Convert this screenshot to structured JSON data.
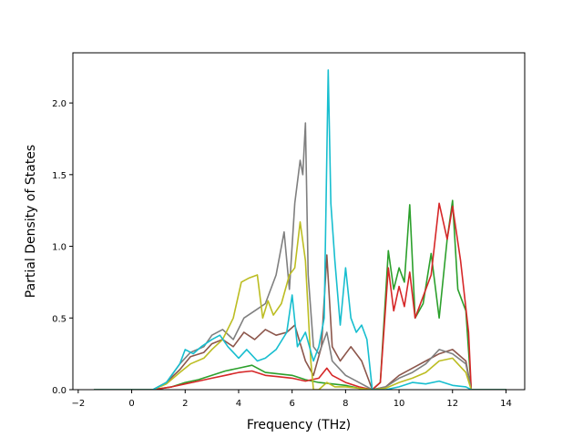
{
  "chart_data": {
    "type": "line",
    "title": "",
    "xlabel": "Frequency (THz)",
    "ylabel": "Partial Density of States",
    "xlim": [
      -2.2,
      14.7
    ],
    "ylim": [
      0,
      2.35
    ],
    "xticks": [
      -2,
      0,
      2,
      4,
      6,
      8,
      10,
      12,
      14
    ],
    "xtick_labels": [
      "−2",
      "0",
      "2",
      "4",
      "6",
      "8",
      "10",
      "12",
      "14"
    ],
    "yticks": [
      0,
      0.5,
      1,
      1.5,
      2
    ],
    "ytick_labels": [
      "0.0",
      "0.5",
      "1.0",
      "1.5",
      "2.0"
    ],
    "grid": false,
    "legend": "none",
    "series": [
      {
        "color": "#2ca02c",
        "points": [
          [
            -1.4,
            0
          ],
          [
            0.8,
            0
          ],
          [
            1.5,
            0.02
          ],
          [
            2,
            0.05
          ],
          [
            2.5,
            0.07
          ],
          [
            3,
            0.1
          ],
          [
            3.5,
            0.13
          ],
          [
            4,
            0.15
          ],
          [
            4.5,
            0.17
          ],
          [
            5,
            0.12
          ],
          [
            5.5,
            0.11
          ],
          [
            6,
            0.1
          ],
          [
            6.5,
            0.07
          ],
          [
            7,
            0.05
          ],
          [
            7.5,
            0.04
          ],
          [
            8,
            0.03
          ],
          [
            8.5,
            0.01
          ],
          [
            9,
            0
          ],
          [
            9.3,
            0.05
          ],
          [
            9.6,
            0.97
          ],
          [
            9.8,
            0.7
          ],
          [
            10,
            0.85
          ],
          [
            10.2,
            0.75
          ],
          [
            10.4,
            1.29
          ],
          [
            10.6,
            0.5
          ],
          [
            10.9,
            0.6
          ],
          [
            11.2,
            0.95
          ],
          [
            11.5,
            0.5
          ],
          [
            11.8,
            1.05
          ],
          [
            12,
            1.32
          ],
          [
            12.2,
            0.7
          ],
          [
            12.5,
            0.55
          ],
          [
            12.7,
            0
          ],
          [
            14,
            0
          ]
        ]
      },
      {
        "color": "#d62728",
        "points": [
          [
            -1.4,
            0
          ],
          [
            0.8,
            0
          ],
          [
            1.5,
            0.02
          ],
          [
            2,
            0.04
          ],
          [
            2.5,
            0.06
          ],
          [
            3,
            0.08
          ],
          [
            3.5,
            0.1
          ],
          [
            4,
            0.12
          ],
          [
            4.5,
            0.13
          ],
          [
            5,
            0.1
          ],
          [
            5.5,
            0.09
          ],
          [
            6,
            0.08
          ],
          [
            6.5,
            0.06
          ],
          [
            7,
            0.08
          ],
          [
            7.3,
            0.15
          ],
          [
            7.5,
            0.1
          ],
          [
            8,
            0.05
          ],
          [
            8.5,
            0.02
          ],
          [
            9,
            0
          ],
          [
            9.3,
            0.05
          ],
          [
            9.6,
            0.85
          ],
          [
            9.8,
            0.55
          ],
          [
            10,
            0.72
          ],
          [
            10.2,
            0.58
          ],
          [
            10.4,
            0.82
          ],
          [
            10.6,
            0.5
          ],
          [
            10.9,
            0.65
          ],
          [
            11.2,
            0.8
          ],
          [
            11.5,
            1.3
          ],
          [
            11.8,
            1.05
          ],
          [
            12,
            1.28
          ],
          [
            12.3,
            0.9
          ],
          [
            12.6,
            0.4
          ],
          [
            12.7,
            0
          ],
          [
            14,
            0
          ]
        ]
      },
      {
        "color": "#8c564b",
        "points": [
          [
            -1.4,
            0
          ],
          [
            0.8,
            0
          ],
          [
            1.3,
            0.05
          ],
          [
            1.8,
            0.14
          ],
          [
            2.2,
            0.23
          ],
          [
            2.7,
            0.26
          ],
          [
            3,
            0.32
          ],
          [
            3.4,
            0.35
          ],
          [
            3.8,
            0.3
          ],
          [
            4.2,
            0.4
          ],
          [
            4.6,
            0.35
          ],
          [
            5,
            0.42
          ],
          [
            5.4,
            0.38
          ],
          [
            5.8,
            0.4
          ],
          [
            6.1,
            0.45
          ],
          [
            6.5,
            0.2
          ],
          [
            6.8,
            0.1
          ],
          [
            7.1,
            0.3
          ],
          [
            7.3,
            0.94
          ],
          [
            7.5,
            0.3
          ],
          [
            7.8,
            0.2
          ],
          [
            8.2,
            0.3
          ],
          [
            8.6,
            0.2
          ],
          [
            9,
            0
          ],
          [
            9.5,
            0.02
          ],
          [
            10,
            0.1
          ],
          [
            10.5,
            0.15
          ],
          [
            11,
            0.2
          ],
          [
            11.5,
            0.25
          ],
          [
            12,
            0.28
          ],
          [
            12.5,
            0.2
          ],
          [
            12.7,
            0
          ],
          [
            14,
            0
          ]
        ]
      },
      {
        "color": "#7f7f7f",
        "points": [
          [
            -1.4,
            0
          ],
          [
            0.8,
            0
          ],
          [
            1.3,
            0.05
          ],
          [
            1.8,
            0.18
          ],
          [
            2.2,
            0.26
          ],
          [
            2.7,
            0.3
          ],
          [
            3,
            0.38
          ],
          [
            3.4,
            0.42
          ],
          [
            3.8,
            0.35
          ],
          [
            4.2,
            0.5
          ],
          [
            4.6,
            0.55
          ],
          [
            5,
            0.6
          ],
          [
            5.4,
            0.8
          ],
          [
            5.7,
            1.1
          ],
          [
            5.9,
            0.7
          ],
          [
            6.1,
            1.3
          ],
          [
            6.3,
            1.6
          ],
          [
            6.4,
            1.5
          ],
          [
            6.5,
            1.86
          ],
          [
            6.6,
            0.8
          ],
          [
            6.8,
            0.3
          ],
          [
            7,
            0.25
          ],
          [
            7.3,
            0.4
          ],
          [
            7.5,
            0.2
          ],
          [
            8,
            0.1
          ],
          [
            8.5,
            0.05
          ],
          [
            9,
            0
          ],
          [
            9.5,
            0.02
          ],
          [
            10,
            0.08
          ],
          [
            10.5,
            0.12
          ],
          [
            11,
            0.18
          ],
          [
            11.5,
            0.28
          ],
          [
            12,
            0.25
          ],
          [
            12.5,
            0.18
          ],
          [
            12.7,
            0
          ],
          [
            14,
            0
          ]
        ]
      },
      {
        "color": "#bcbd22",
        "points": [
          [
            -1.4,
            0
          ],
          [
            0.8,
            0
          ],
          [
            1.3,
            0.04
          ],
          [
            1.8,
            0.12
          ],
          [
            2.2,
            0.18
          ],
          [
            2.7,
            0.22
          ],
          [
            3,
            0.28
          ],
          [
            3.4,
            0.35
          ],
          [
            3.8,
            0.5
          ],
          [
            4.1,
            0.75
          ],
          [
            4.4,
            0.78
          ],
          [
            4.7,
            0.8
          ],
          [
            4.9,
            0.5
          ],
          [
            5.1,
            0.62
          ],
          [
            5.3,
            0.52
          ],
          [
            5.6,
            0.6
          ],
          [
            5.9,
            0.8
          ],
          [
            6.1,
            0.85
          ],
          [
            6.3,
            1.17
          ],
          [
            6.5,
            0.9
          ],
          [
            6.7,
            0.2
          ],
          [
            6.8,
            0
          ],
          [
            7,
            0
          ],
          [
            7.3,
            0.05
          ],
          [
            7.6,
            0.02
          ],
          [
            8,
            0.02
          ],
          [
            9,
            0
          ],
          [
            9.5,
            0.01
          ],
          [
            10,
            0.05
          ],
          [
            10.5,
            0.08
          ],
          [
            11,
            0.12
          ],
          [
            11.5,
            0.2
          ],
          [
            12,
            0.22
          ],
          [
            12.5,
            0.12
          ],
          [
            12.7,
            0
          ],
          [
            14,
            0
          ]
        ]
      },
      {
        "color": "#17becf",
        "points": [
          [
            -1.4,
            0
          ],
          [
            0.8,
            0
          ],
          [
            1.3,
            0.05
          ],
          [
            1.8,
            0.18
          ],
          [
            2,
            0.28
          ],
          [
            2.3,
            0.25
          ],
          [
            2.6,
            0.3
          ],
          [
            3,
            0.35
          ],
          [
            3.3,
            0.38
          ],
          [
            3.6,
            0.3
          ],
          [
            4,
            0.22
          ],
          [
            4.3,
            0.28
          ],
          [
            4.7,
            0.2
          ],
          [
            5,
            0.22
          ],
          [
            5.4,
            0.28
          ],
          [
            5.8,
            0.4
          ],
          [
            6,
            0.66
          ],
          [
            6.2,
            0.3
          ],
          [
            6.5,
            0.4
          ],
          [
            6.8,
            0.2
          ],
          [
            7,
            0.3
          ],
          [
            7.2,
            0.5
          ],
          [
            7.35,
            2.23
          ],
          [
            7.45,
            1.3
          ],
          [
            7.6,
            0.9
          ],
          [
            7.8,
            0.45
          ],
          [
            8,
            0.85
          ],
          [
            8.2,
            0.5
          ],
          [
            8.4,
            0.4
          ],
          [
            8.6,
            0.45
          ],
          [
            8.8,
            0.35
          ],
          [
            9,
            0
          ],
          [
            9.5,
            0
          ],
          [
            10,
            0.02
          ],
          [
            10.5,
            0.05
          ],
          [
            11,
            0.04
          ],
          [
            11.5,
            0.06
          ],
          [
            12,
            0.03
          ],
          [
            12.5,
            0.02
          ],
          [
            12.7,
            0
          ],
          [
            14,
            0
          ]
        ]
      }
    ]
  }
}
